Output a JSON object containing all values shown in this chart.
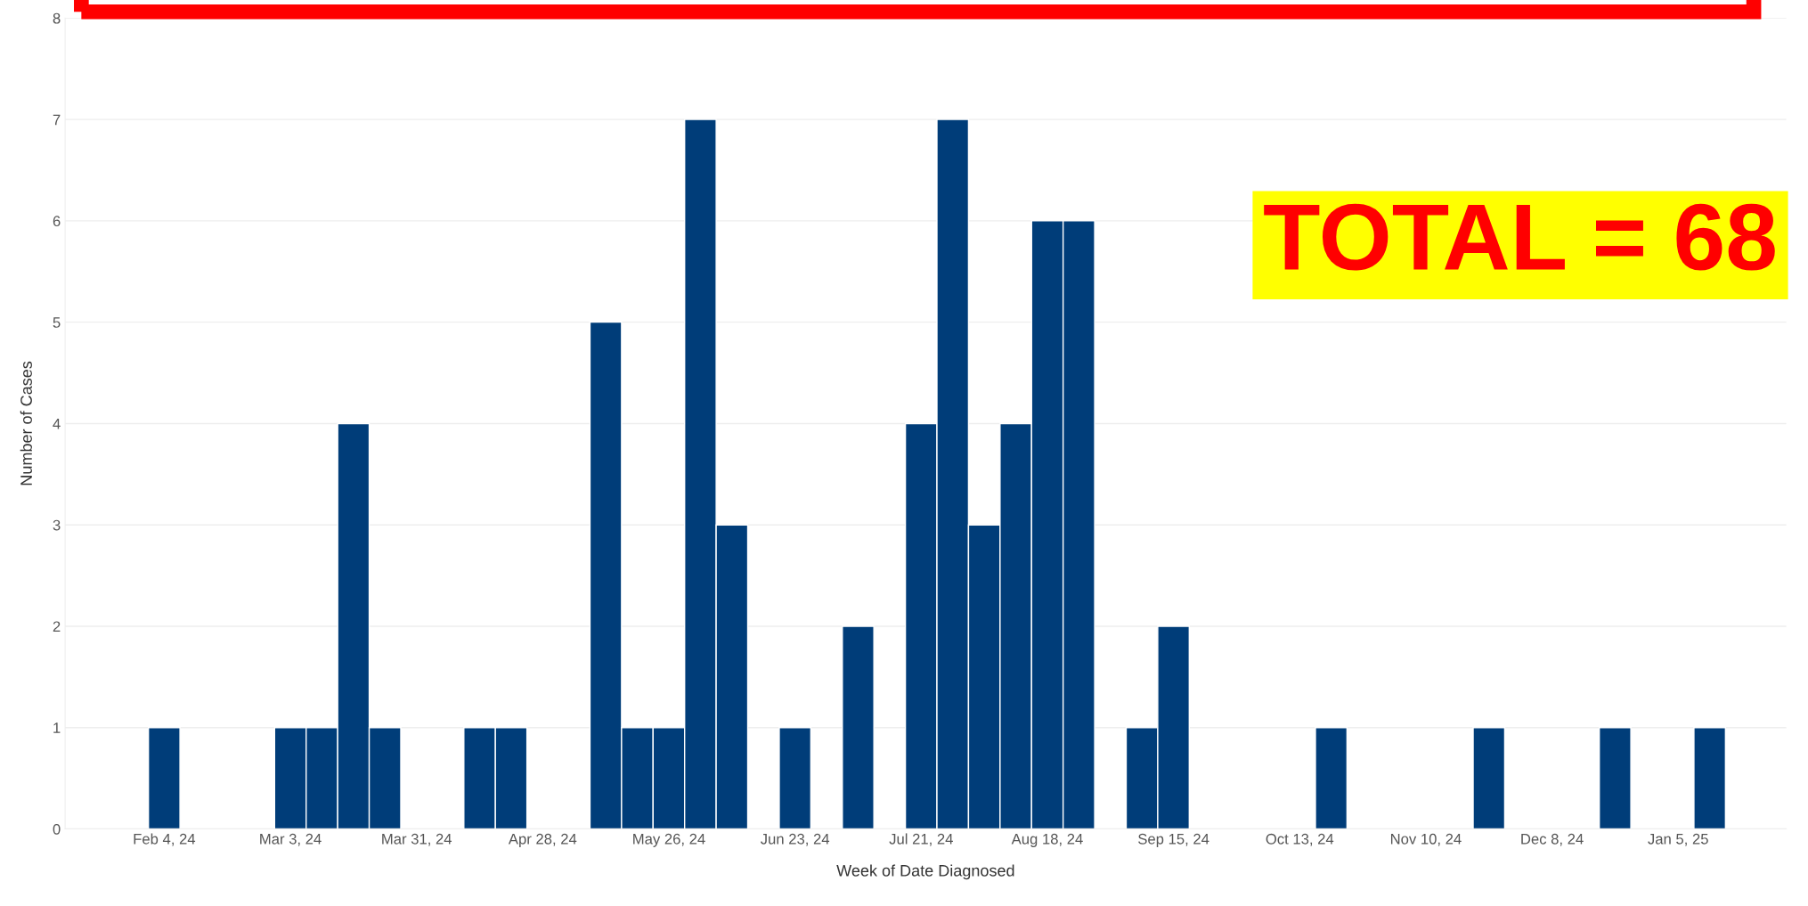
{
  "chart_data": {
    "type": "bar",
    "xlabel": "Week of Date Diagnosed",
    "ylabel": "Number of Cases",
    "x": [
      "2024-02-04",
      "2024-03-03",
      "2024-03-10",
      "2024-03-17",
      "2024-03-24",
      "2024-04-14",
      "2024-04-21",
      "2024-05-12",
      "2024-05-19",
      "2024-05-26",
      "2024-06-02",
      "2024-06-09",
      "2024-06-23",
      "2024-07-07",
      "2024-07-21",
      "2024-07-28",
      "2024-08-04",
      "2024-08-11",
      "2024-08-18",
      "2024-08-25",
      "2024-09-08",
      "2024-09-15",
      "2024-10-20",
      "2024-11-24",
      "2024-12-22",
      "2025-01-12"
    ],
    "values": [
      1,
      1,
      1,
      4,
      1,
      1,
      1,
      5,
      1,
      1,
      7,
      3,
      1,
      2,
      4,
      7,
      3,
      4,
      6,
      6,
      1,
      2,
      1,
      1,
      1,
      1
    ],
    "color": "#003d79",
    "xlim": [
      "2024-01-13",
      "2025-01-29"
    ],
    "xticks": [
      {
        "value": "2024-02-04",
        "label": "Feb 4, 24"
      },
      {
        "value": "2024-03-03",
        "label": "Mar 3, 24"
      },
      {
        "value": "2024-03-31",
        "label": "Mar 31, 24"
      },
      {
        "value": "2024-04-28",
        "label": "Apr 28, 24"
      },
      {
        "value": "2024-05-26",
        "label": "May 26, 24"
      },
      {
        "value": "2024-06-23",
        "label": "Jun 23, 24"
      },
      {
        "value": "2024-07-21",
        "label": "Jul 21, 24"
      },
      {
        "value": "2024-08-18",
        "label": "Aug 18, 24"
      },
      {
        "value": "2024-09-15",
        "label": "Sep 15, 24"
      },
      {
        "value": "2024-10-13",
        "label": "Oct 13, 24"
      },
      {
        "value": "2024-11-10",
        "label": "Nov 10, 24"
      },
      {
        "value": "2024-12-08",
        "label": "Dec 8, 24"
      },
      {
        "value": "2025-01-05",
        "label": "Jan 5, 25"
      }
    ],
    "ylim": [
      0,
      8
    ],
    "yticks": [
      0,
      1,
      2,
      3,
      4,
      5,
      6,
      7,
      8
    ],
    "grid": "y",
    "legend": false,
    "annotations": [
      "TOTAL = 68"
    ]
  }
}
